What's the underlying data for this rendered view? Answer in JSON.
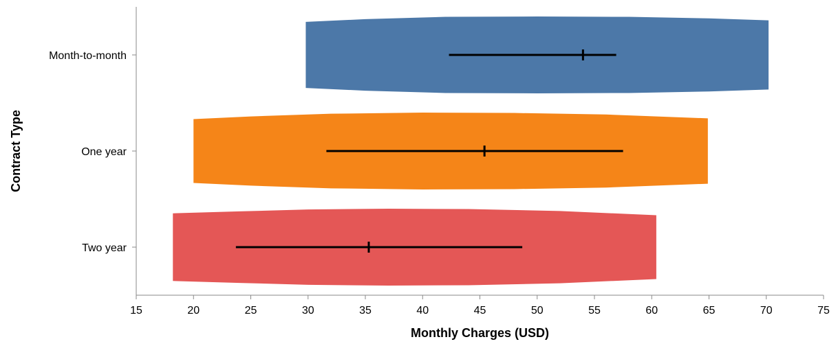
{
  "chart_data": {
    "type": "violin",
    "xlabel": "Monthly Charges (USD)",
    "ylabel": "Contract Type",
    "xlim": [
      15,
      75
    ],
    "x_ticks": [
      15,
      20,
      25,
      30,
      35,
      40,
      45,
      50,
      55,
      60,
      65,
      70,
      75
    ],
    "grid": false,
    "categories": [
      "Month-to-month",
      "One year",
      "Two year"
    ],
    "series": [
      {
        "category": "Month-to-month",
        "color": "#4c78a8",
        "range": [
          29.8,
          70.2
        ],
        "density_shape": [
          [
            29.8,
            0.86
          ],
          [
            35,
            0.93
          ],
          [
            42,
            0.99
          ],
          [
            50,
            1.0
          ],
          [
            58,
            0.99
          ],
          [
            65,
            0.95
          ],
          [
            70.2,
            0.9
          ]
        ],
        "iqr": [
          42.3,
          56.9
        ],
        "median": 54.0
      },
      {
        "category": "One year",
        "color": "#f58518",
        "range": [
          20.0,
          64.9
        ],
        "density_shape": [
          [
            20.0,
            0.83
          ],
          [
            25,
            0.9
          ],
          [
            32,
            0.97
          ],
          [
            40,
            1.0
          ],
          [
            48,
            0.99
          ],
          [
            56,
            0.95
          ],
          [
            64.9,
            0.85
          ]
        ],
        "iqr": [
          31.6,
          57.5
        ],
        "median": 45.4
      },
      {
        "category": "Two year",
        "color": "#e45756",
        "range": [
          18.2,
          60.4
        ],
        "density_shape": [
          [
            18.2,
            0.88
          ],
          [
            24,
            0.93
          ],
          [
            30,
            0.98
          ],
          [
            37,
            1.0
          ],
          [
            44,
            0.99
          ],
          [
            52,
            0.94
          ],
          [
            60.4,
            0.83
          ]
        ],
        "iqr": [
          23.7,
          48.7
        ],
        "median": 35.3
      }
    ]
  }
}
